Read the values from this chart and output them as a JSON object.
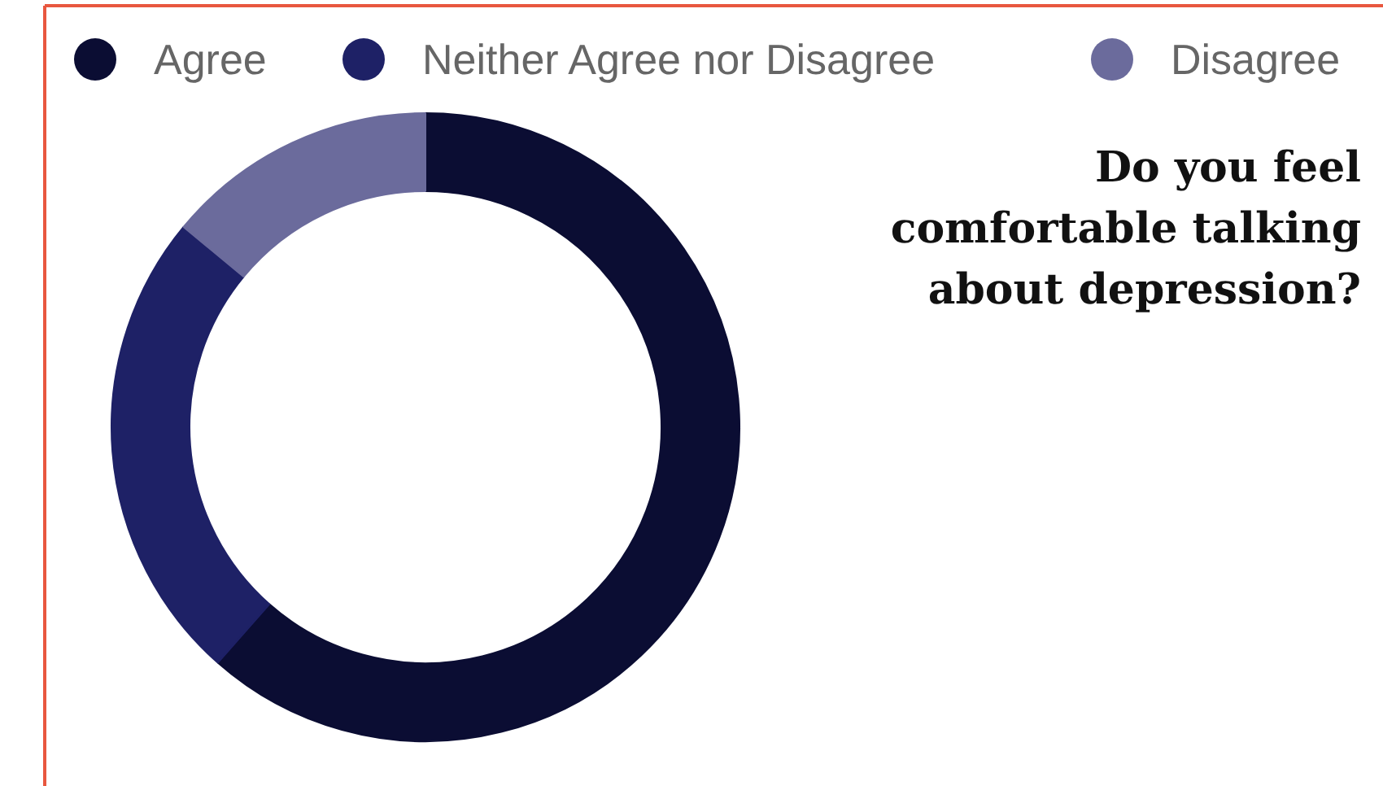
{
  "chart_data": {
    "type": "donut",
    "title": "Do you feel\ncomfortable talking\nabout depression?",
    "categories": [
      "Agree",
      "Neither Agree nor Disagree",
      "Disagree"
    ],
    "values": [
      61.5,
      24.5,
      14
    ],
    "colors": [
      "#0b0d33",
      "#1e2166",
      "#6b6b9c"
    ],
    "legend": "top"
  }
}
